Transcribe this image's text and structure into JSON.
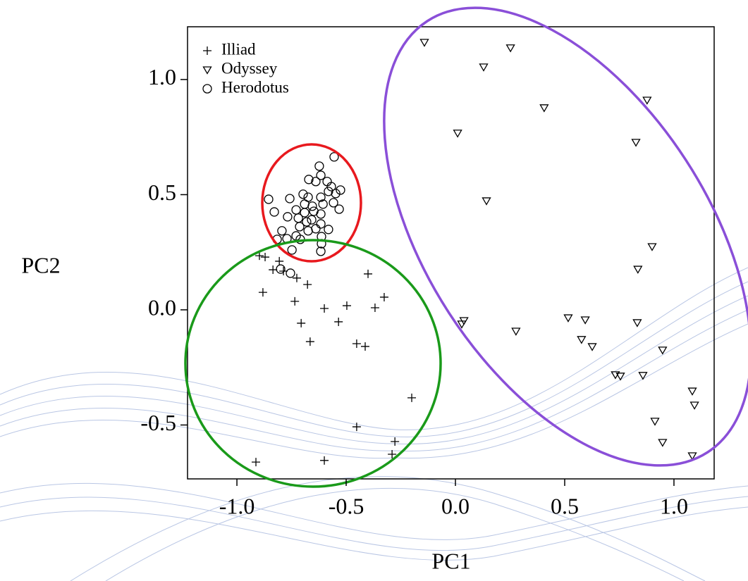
{
  "chart_data": {
    "type": "scatter",
    "xlabel": "PC1",
    "ylabel": "PC2",
    "xlim": [
      -1.226,
      1.184
    ],
    "ylim": [
      -0.734,
      1.229
    ],
    "xticks": [
      {
        "value": -1.0,
        "label": "-1.0"
      },
      {
        "value": -0.5,
        "label": "-0.5"
      },
      {
        "value": 0.0,
        "label": "0.0"
      },
      {
        "value": 0.5,
        "label": "0.5"
      },
      {
        "value": 1.0,
        "label": "1.0"
      }
    ],
    "yticks": [
      {
        "value": -0.5,
        "label": "-0.5"
      },
      {
        "value": 0.0,
        "label": "0.0"
      },
      {
        "value": 0.5,
        "label": "0.5"
      },
      {
        "value": 1.0,
        "label": "1.0"
      }
    ],
    "legend": "top-left",
    "series": [
      {
        "name": "Illiad",
        "marker": "plus",
        "color": "#000000",
        "x": [
          -0.897,
          -0.871,
          -0.806,
          -0.835,
          -0.787,
          -0.881,
          -0.726,
          -0.677,
          -0.735,
          -0.6,
          -0.497,
          -0.368,
          -0.326,
          -0.4,
          -0.706,
          -0.535,
          -0.665,
          -0.452,
          -0.413,
          -0.2,
          -0.452,
          -0.277,
          -0.29,
          -0.913,
          -0.6
        ],
        "values": [
          0.235,
          0.229,
          0.211,
          0.174,
          0.168,
          0.076,
          0.138,
          0.11,
          0.037,
          0.006,
          0.018,
          0.009,
          0.055,
          0.156,
          -0.058,
          -0.052,
          -0.138,
          -0.147,
          -0.159,
          -0.382,
          -0.508,
          -0.572,
          -0.627,
          -0.661,
          -0.654
        ]
      },
      {
        "name": "Odyssey",
        "marker": "triangle",
        "color": "#000000",
        "x": [
          -0.142,
          0.252,
          0.129,
          0.406,
          0.877,
          0.01,
          0.826,
          0.142,
          0.9,
          0.835,
          0.039,
          0.029,
          0.277,
          0.516,
          0.594,
          0.832,
          0.577,
          0.626,
          0.948,
          0.732,
          0.755,
          0.858,
          1.084,
          1.094,
          0.913,
          0.948,
          1.084
        ],
        "values": [
          1.162,
          1.138,
          1.055,
          0.878,
          0.911,
          0.768,
          0.728,
          0.474,
          0.275,
          0.177,
          -0.046,
          -0.061,
          -0.092,
          -0.034,
          -0.043,
          -0.055,
          -0.128,
          -0.159,
          -0.174,
          -0.281,
          -0.287,
          -0.284,
          -0.352,
          -0.413,
          -0.483,
          -0.575,
          -0.633
        ]
      },
      {
        "name": "Herodotus",
        "marker": "circle",
        "color": "#000000",
        "x": [
          -0.555,
          -0.623,
          -0.616,
          -0.671,
          -0.639,
          -0.587,
          -0.568,
          -0.526,
          -0.581,
          -0.548,
          -0.697,
          -0.674,
          -0.616,
          -0.855,
          -0.758,
          -0.558,
          -0.606,
          -0.69,
          -0.655,
          -0.532,
          -0.829,
          -0.729,
          -0.648,
          -0.69,
          -0.616,
          -0.768,
          -0.719,
          -0.658,
          -0.681,
          -0.616,
          -0.713,
          -0.639,
          -0.581,
          -0.794,
          -0.674,
          -0.729,
          -0.613,
          -0.816,
          -0.771,
          -0.71,
          -0.613,
          -0.748,
          -0.616,
          -0.8,
          -0.755
        ],
        "values": [
          0.664,
          0.624,
          0.584,
          0.566,
          0.557,
          0.557,
          0.535,
          0.52,
          0.514,
          0.505,
          0.502,
          0.489,
          0.489,
          0.48,
          0.483,
          0.465,
          0.459,
          0.459,
          0.45,
          0.437,
          0.425,
          0.434,
          0.428,
          0.422,
          0.416,
          0.404,
          0.398,
          0.391,
          0.382,
          0.373,
          0.361,
          0.352,
          0.349,
          0.343,
          0.343,
          0.321,
          0.318,
          0.306,
          0.309,
          0.306,
          0.287,
          0.26,
          0.254,
          0.177,
          0.159
        ]
      }
    ]
  }
}
